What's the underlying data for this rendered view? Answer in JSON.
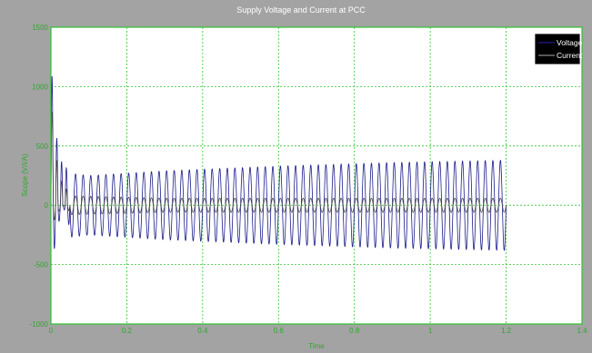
{
  "window": {
    "title": "Supply Voltage and Current at PCC"
  },
  "colors": {
    "figure_bg": "#a3a3a3",
    "plot_bg": "#ffffff",
    "frame": "#2ec42e",
    "grid": "#2ec42e",
    "voltage": "#1c1c8c",
    "current": "#4a4a4a"
  },
  "chart_data": {
    "type": "line",
    "title": "Supply Voltage and Current at PCC",
    "xlabel": "Time",
    "ylabel": "Scope (V/I/A)",
    "xlim": [
      0,
      1.4
    ],
    "ylim": [
      -1000,
      1500
    ],
    "xticks": [
      "0",
      "0.2",
      "0.4",
      "0.6",
      "0.8",
      "1",
      "1.2",
      "1.4"
    ],
    "yticks": [
      "1500",
      "1000",
      "500",
      "0",
      "-500",
      "-1000"
    ],
    "grid": true,
    "legend_position": "top-right",
    "series": [
      {
        "name": "Voltage",
        "kind": "sinusoid",
        "frequency_hz": 50,
        "t_start": 0,
        "t_end": 1.2,
        "initial_transient": {
          "peak_positive": 1300,
          "peak_negative": -600,
          "settle_time": 0.05
        },
        "envelope": [
          {
            "t": 0.05,
            "amplitude": 270
          },
          {
            "t": 0.1,
            "amplitude": 250
          },
          {
            "t": 0.3,
            "amplitude": 290
          },
          {
            "t": 0.6,
            "amplitude": 330
          },
          {
            "t": 0.9,
            "amplitude": 360
          },
          {
            "t": 1.2,
            "amplitude": 380
          }
        ]
      },
      {
        "name": "Current",
        "kind": "sinusoid",
        "frequency_hz": 50,
        "t_start": 0,
        "t_end": 1.2,
        "initial_transient": {
          "peak_positive": 950,
          "peak_negative": -200,
          "settle_time": 0.05
        },
        "envelope": [
          {
            "t": 0.05,
            "amplitude": 80
          },
          {
            "t": 0.3,
            "amplitude": 60
          },
          {
            "t": 0.6,
            "amplitude": 60
          },
          {
            "t": 1.2,
            "amplitude": 60
          }
        ]
      }
    ]
  }
}
